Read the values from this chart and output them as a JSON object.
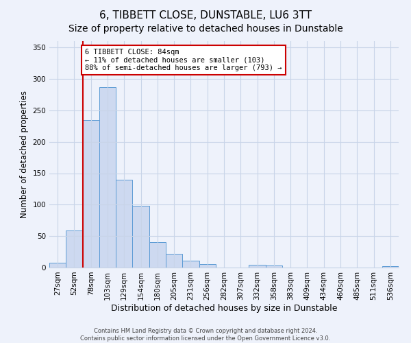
{
  "title": "6, TIBBETT CLOSE, DUNSTABLE, LU6 3TT",
  "subtitle": "Size of property relative to detached houses in Dunstable",
  "xlabel": "Distribution of detached houses by size in Dunstable",
  "ylabel": "Number of detached properties",
  "bar_labels": [
    "27sqm",
    "52sqm",
    "78sqm",
    "103sqm",
    "129sqm",
    "154sqm",
    "180sqm",
    "205sqm",
    "231sqm",
    "256sqm",
    "282sqm",
    "307sqm",
    "332sqm",
    "358sqm",
    "383sqm",
    "409sqm",
    "434sqm",
    "460sqm",
    "485sqm",
    "511sqm",
    "536sqm"
  ],
  "bar_values": [
    8,
    59,
    234,
    287,
    140,
    98,
    40,
    22,
    11,
    5,
    0,
    0,
    4,
    3,
    0,
    0,
    0,
    0,
    0,
    0,
    2
  ],
  "bar_color": "#cdd9f0",
  "bar_edge_color": "#5b9bd5",
  "vline_x": 2.0,
  "vline_color": "#cc0000",
  "annotation_title": "6 TIBBETT CLOSE: 84sqm",
  "annotation_line1": "← 11% of detached houses are smaller (103)",
  "annotation_line2": "88% of semi-detached houses are larger (793) →",
  "annotation_box_color": "#ffffff",
  "annotation_box_edge": "#cc0000",
  "ylim": [
    0,
    360
  ],
  "yticks": [
    0,
    50,
    100,
    150,
    200,
    250,
    300,
    350
  ],
  "footer1": "Contains HM Land Registry data © Crown copyright and database right 2024.",
  "footer2": "Contains public sector information licensed under the Open Government Licence v3.0.",
  "bg_color": "#eef2fb",
  "grid_color": "#c8d4e8",
  "title_fontsize": 11,
  "axis_fontsize": 8.5,
  "tick_fontsize": 7.5
}
